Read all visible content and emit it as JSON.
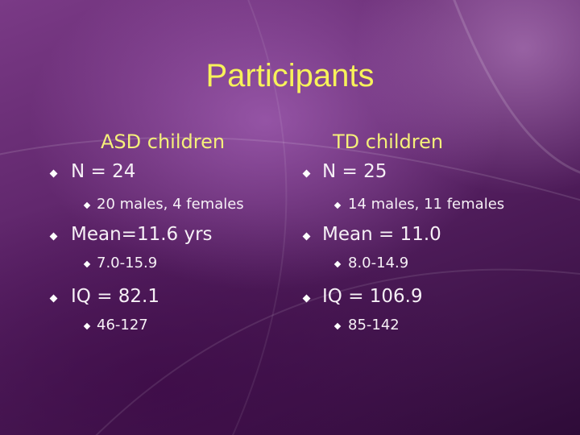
{
  "title": "Participants",
  "columns": [
    {
      "heading": "ASD children",
      "items": [
        {
          "text": "N = 24",
          "subitems": [
            "20 males, 4 females"
          ]
        },
        {
          "text": "Mean=11.6 yrs",
          "subitems": [
            "7.0-15.9"
          ]
        },
        {
          "text": "IQ = 82.1",
          "subitems": [
            "46-127"
          ]
        }
      ]
    },
    {
      "heading": "TD children",
      "items": [
        {
          "text": "N = 25",
          "subitems": [
            "14 males, 11 females"
          ]
        },
        {
          "text": "Mean = 11.0",
          "subitems": [
            "8.0-14.9"
          ]
        },
        {
          "text": "IQ = 106.9",
          "subitems": [
            "85-142"
          ]
        }
      ]
    }
  ]
}
